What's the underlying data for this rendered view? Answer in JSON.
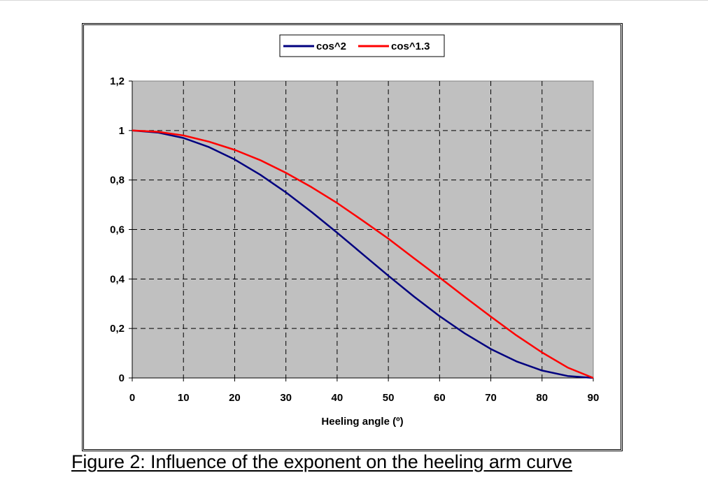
{
  "chart_data": {
    "type": "line",
    "title": "",
    "xlabel": "Heeling angle (º)",
    "ylabel": "",
    "xlim": [
      0,
      90
    ],
    "ylim": [
      0,
      1.2
    ],
    "x_ticks": [
      0,
      10,
      20,
      30,
      40,
      50,
      60,
      70,
      80,
      90
    ],
    "x_tick_labels": [
      "0",
      "10",
      "20",
      "30",
      "40",
      "50",
      "60",
      "70",
      "80",
      "90"
    ],
    "y_ticks": [
      0,
      0.2,
      0.4,
      0.6,
      0.8,
      1.0,
      1.2
    ],
    "y_tick_labels": [
      "0",
      "0,2",
      "0,4",
      "0,6",
      "0,8",
      "1",
      "1,2"
    ],
    "grid": true,
    "legend_position": "top-center",
    "x": [
      0,
      5,
      10,
      15,
      20,
      25,
      30,
      35,
      40,
      45,
      50,
      55,
      60,
      65,
      70,
      75,
      80,
      85,
      90
    ],
    "series": [
      {
        "name": "cos^2",
        "color": "#00007f",
        "values": [
          1.0,
          0.992,
          0.97,
          0.933,
          0.883,
          0.821,
          0.75,
          0.671,
          0.587,
          0.5,
          0.413,
          0.329,
          0.25,
          0.179,
          0.117,
          0.067,
          0.03,
          0.008,
          0.0
        ]
      },
      {
        "name": "cos^1.3",
        "color": "#ff0000",
        "values": [
          1.0,
          0.995,
          0.98,
          0.955,
          0.922,
          0.88,
          0.829,
          0.771,
          0.707,
          0.636,
          0.563,
          0.484,
          0.406,
          0.326,
          0.248,
          0.172,
          0.103,
          0.042,
          0.0
        ]
      }
    ],
    "plot_background": "#c0c0c0"
  },
  "caption": "Figure 2: Influence of the exponent on the heeling arm curve"
}
